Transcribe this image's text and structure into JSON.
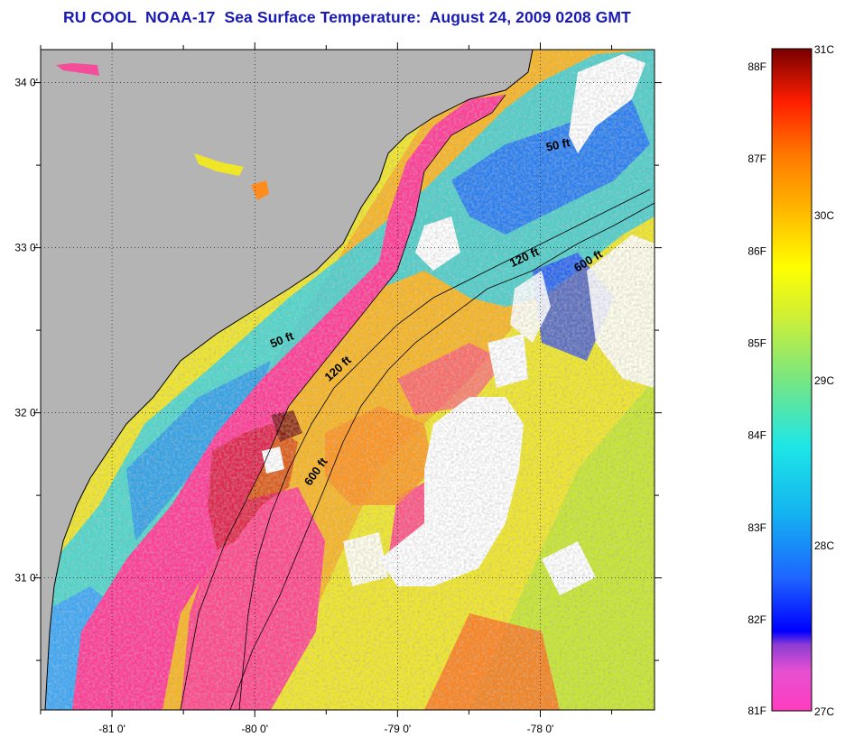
{
  "title": "RU COOL  NOAA-17  Sea Surface Temperature:  August 24, 2009 0208 GMT",
  "map": {
    "lon_range": [
      -81.5,
      -77.2
    ],
    "lat_range": [
      30.2,
      34.2
    ],
    "colors": {
      "land": "#b4b4b4",
      "cloud": "#ffffff",
      "coast_pink": "#ff3c96",
      "warm_orange": "#ff8c1e",
      "mid_yellow": "#f0e628",
      "cool_blue": "#1e64ff",
      "cyan": "#32d2e6",
      "green": "#78e682"
    },
    "lat_ticks": [
      {
        "value": 34,
        "label": "34 0'"
      },
      {
        "value": 33,
        "label": "33 0'"
      },
      {
        "value": 32,
        "label": "32 0'"
      },
      {
        "value": 31,
        "label": "31 0'"
      }
    ],
    "lon_ticks": [
      {
        "value": -81,
        "label": "-81 0'"
      },
      {
        "value": -80,
        "label": "-80 0'"
      },
      {
        "value": -79,
        "label": "-79 0'"
      },
      {
        "value": -78,
        "label": "-78 0'"
      }
    ],
    "contour_labels": [
      {
        "text": "50 ft",
        "lon": -79.8,
        "lat": 32.42,
        "rotate": -22
      },
      {
        "text": "120 ft",
        "lon": -79.4,
        "lat": 32.25,
        "rotate": -42
      },
      {
        "text": "600 ft",
        "lon": -79.55,
        "lat": 31.63,
        "rotate": -55
      },
      {
        "text": "50 ft",
        "lon": -77.87,
        "lat": 33.6,
        "rotate": -12
      },
      {
        "text": "120 ft",
        "lon": -78.1,
        "lat": 32.92,
        "rotate": -25
      },
      {
        "text": "600 ft",
        "lon": -77.65,
        "lat": 32.9,
        "rotate": -32
      }
    ]
  },
  "colorbar": {
    "f_labels": [
      "88F",
      "87F",
      "86F",
      "85F",
      "84F",
      "83F",
      "82F",
      "81F"
    ],
    "c_labels": [
      "31C",
      "30C",
      "29C",
      "28C",
      "27C"
    ]
  }
}
